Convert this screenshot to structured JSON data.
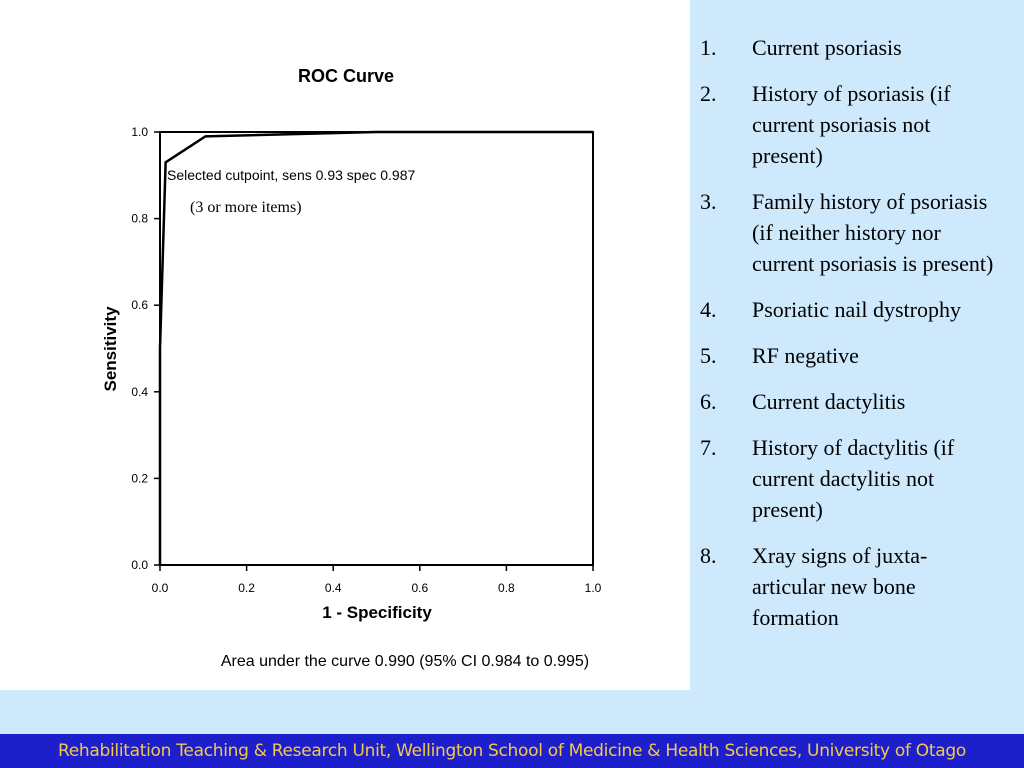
{
  "chart_data": {
    "type": "line",
    "title": "ROC Curve",
    "xlabel": "1 - Specificity",
    "ylabel": "Sensitivity",
    "xlim": [
      0,
      1
    ],
    "ylim": [
      0,
      1
    ],
    "x_ticks": [
      "0.0",
      "0.2",
      "0.4",
      "0.6",
      "0.8",
      "1.0"
    ],
    "y_ticks": [
      "0.0",
      "0.2",
      "0.4",
      "0.6",
      "0.8",
      "1.0"
    ],
    "grid": false,
    "series": [
      {
        "points": [
          [
            0.0,
            0.0
          ],
          [
            0.0,
            0.5
          ],
          [
            0.013,
            0.93
          ],
          [
            0.105,
            0.99
          ],
          [
            0.5,
            1.0
          ],
          [
            1.0,
            1.0
          ]
        ]
      }
    ],
    "annotations": [
      {
        "text": "Selected cutpoint, sens 0.93 spec 0.987"
      },
      {
        "text": "(3 or more items)"
      }
    ],
    "note": "Area under the curve 0.990 (95% CI 0.984 to 0.995)"
  },
  "criteria": [
    {
      "num": "1.",
      "text": "Current psoriasis"
    },
    {
      "num": "2.",
      "text": "History of psoriasis (if current psoriasis not present)"
    },
    {
      "num": "3.",
      "text": "Family history of psoriasis (if neither history nor current psoriasis is present)"
    },
    {
      "num": "4.",
      "text": "Psoriatic nail dystrophy"
    },
    {
      "num": "5.",
      "text": "RF negative"
    },
    {
      "num": "6.",
      "text": "Current dactylitis"
    },
    {
      "num": "7.",
      "text": "History of dactylitis (if current dactylitis not present)"
    },
    {
      "num": "8.",
      "text": "Xray signs of juxta-articular new bone formation"
    }
  ],
  "footer": {
    "text": "Rehabilitation Teaching & Research Unit, Wellington School of Medicine & Health Sciences, University of Otago"
  }
}
